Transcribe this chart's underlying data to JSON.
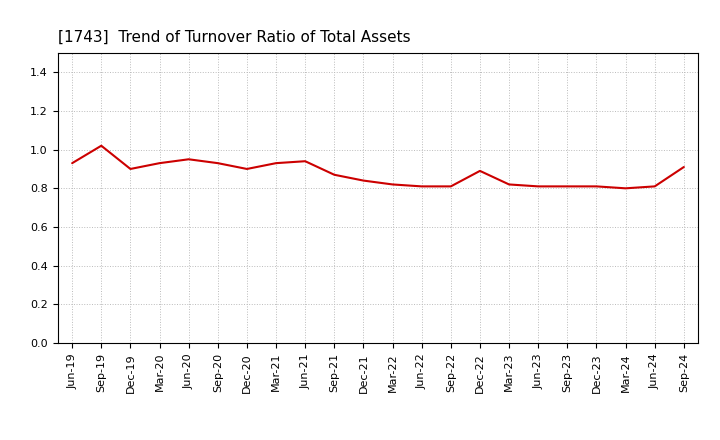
{
  "title": "[1743]  Trend of Turnover Ratio of Total Assets",
  "x_labels": [
    "Jun-19",
    "Sep-19",
    "Dec-19",
    "Mar-20",
    "Jun-20",
    "Sep-20",
    "Dec-20",
    "Mar-21",
    "Jun-21",
    "Sep-21",
    "Dec-21",
    "Mar-22",
    "Jun-22",
    "Sep-22",
    "Dec-22",
    "Mar-23",
    "Jun-23",
    "Sep-23",
    "Dec-23",
    "Mar-24",
    "Jun-24",
    "Sep-24"
  ],
  "y_values": [
    0.93,
    1.02,
    0.9,
    0.93,
    0.95,
    0.93,
    0.9,
    0.93,
    0.94,
    0.87,
    0.84,
    0.82,
    0.81,
    0.81,
    0.89,
    0.82,
    0.81,
    0.81,
    0.81,
    0.8,
    0.81,
    0.91
  ],
  "line_color": "#cc0000",
  "line_width": 1.5,
  "ylim": [
    0.0,
    1.5
  ],
  "yticks": [
    0.0,
    0.2,
    0.4,
    0.6,
    0.8,
    1.0,
    1.2,
    1.4
  ],
  "grid_color": "#bbbbbb",
  "background_color": "#ffffff",
  "title_fontsize": 11,
  "tick_fontsize": 8
}
